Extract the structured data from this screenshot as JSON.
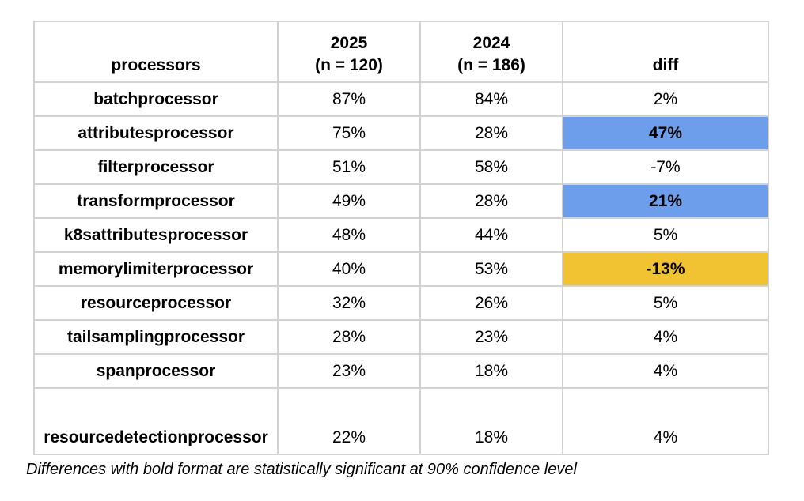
{
  "chart_data": {
    "type": "table",
    "columns": [
      {
        "label": "processors"
      },
      {
        "label": "2025",
        "sublabel": "(n = 120)"
      },
      {
        "label": "2024",
        "sublabel": "(n = 186)"
      },
      {
        "label": "diff"
      }
    ],
    "rows": [
      {
        "processor": "batchprocessor",
        "pct_2025": "87%",
        "pct_2024": "84%",
        "diff": "2%",
        "highlight": "none"
      },
      {
        "processor": "attributesprocessor",
        "pct_2025": "75%",
        "pct_2024": "28%",
        "diff": "47%",
        "highlight": "blue"
      },
      {
        "processor": "filterprocessor",
        "pct_2025": "51%",
        "pct_2024": "58%",
        "diff": "-7%",
        "highlight": "none"
      },
      {
        "processor": "transformprocessor",
        "pct_2025": "49%",
        "pct_2024": "28%",
        "diff": "21%",
        "highlight": "blue"
      },
      {
        "processor": "k8sattributesprocessor",
        "pct_2025": "48%",
        "pct_2024": "44%",
        "diff": "5%",
        "highlight": "none"
      },
      {
        "processor": "memorylimiterprocessor",
        "pct_2025": "40%",
        "pct_2024": "53%",
        "diff": "-13%",
        "highlight": "orange"
      },
      {
        "processor": "resourceprocessor",
        "pct_2025": "32%",
        "pct_2024": "26%",
        "diff": "5%",
        "highlight": "none"
      },
      {
        "processor": "tailsamplingprocessor",
        "pct_2025": "28%",
        "pct_2024": "23%",
        "diff": "4%",
        "highlight": "none"
      },
      {
        "processor": "spanprocessor",
        "pct_2025": "23%",
        "pct_2024": "18%",
        "diff": "4%",
        "highlight": "none"
      },
      {
        "processor": "resourcedetectionprocessor",
        "pct_2025": "22%",
        "pct_2024": "18%",
        "diff": "4%",
        "highlight": "none"
      }
    ],
    "highlight_colors": {
      "blue": "#6d9eeb",
      "orange": "#f1c232"
    },
    "border_color": "#d2d2d2",
    "footnote": "Differences with bold format are statistically significant at 90% confidence level"
  }
}
